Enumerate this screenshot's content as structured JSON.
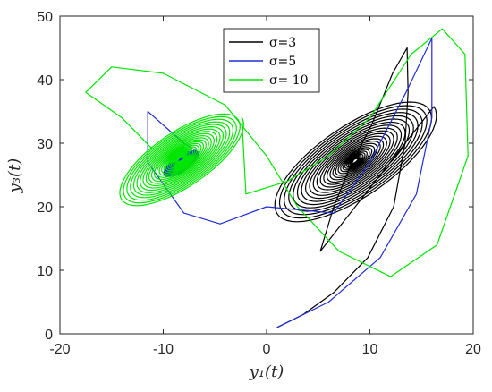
{
  "chart_data": {
    "type": "line",
    "title": "",
    "xlabel": "y₁(t)",
    "ylabel": "y₃(t)",
    "xlim": [
      -20,
      20
    ],
    "ylim": [
      0,
      50
    ],
    "xticks": [
      "-20",
      "-10",
      "0",
      "10",
      "20"
    ],
    "yticks": [
      "0",
      "10",
      "20",
      "30",
      "40",
      "50"
    ],
    "grid": false,
    "legend_position": "top-center",
    "series": [
      {
        "name": "σ=3",
        "color": "#000000",
        "start": [
          1,
          1
        ],
        "center": [
          8.5,
          27.2
        ],
        "pitch": 11.8,
        "extent": [
          -4,
          22
        ],
        "path": [
          [
            1,
            1
          ],
          [
            3.5,
            3
          ],
          [
            6.5,
            6.5
          ],
          [
            9.8,
            12
          ],
          [
            12.3,
            20
          ],
          [
            13.4,
            30
          ],
          [
            13.7,
            38
          ],
          [
            13.6,
            45
          ],
          [
            12.2,
            41
          ],
          [
            10.2,
            33
          ],
          [
            8,
            26
          ],
          [
            6.5,
            20
          ],
          [
            5.2,
            13
          ]
        ]
      },
      {
        "name": "σ=5",
        "color": "#1f2ed6",
        "start": [
          1,
          1
        ],
        "center": [
          -8.3,
          26.8
        ],
        "pitch": 10.8,
        "extent": [
          -5.5,
          7.5
        ],
        "path": [
          [
            1,
            1
          ],
          [
            6,
            5
          ],
          [
            11,
            12
          ],
          [
            14.5,
            22
          ],
          [
            16,
            34
          ],
          [
            16,
            46.5
          ],
          [
            13.5,
            38
          ],
          [
            10,
            27
          ],
          [
            6.5,
            19
          ],
          [
            0,
            20
          ],
          [
            -4.5,
            17.3
          ],
          [
            -8,
            19
          ],
          [
            -11.5,
            27
          ],
          [
            -11.5,
            35
          ],
          [
            -8,
            30
          ]
        ]
      },
      {
        "name": "σ= 10",
        "color": "#00e600",
        "start": [
          -11,
          29
        ],
        "center": [
          -8.3,
          27.5
        ],
        "pitch": 11.7,
        "extent": [
          -3.4,
          25.2
        ],
        "path": [
          [
            -11,
            29
          ],
          [
            -14,
            34
          ],
          [
            -17.5,
            38
          ],
          [
            -15,
            42
          ],
          [
            -10,
            41
          ],
          [
            -4,
            36
          ],
          [
            0,
            28
          ],
          [
            3,
            20
          ],
          [
            7,
            13
          ],
          [
            12,
            9
          ],
          [
            16.5,
            14
          ],
          [
            19.5,
            28
          ],
          [
            19.2,
            44
          ],
          [
            17,
            48
          ],
          [
            14,
            44
          ],
          [
            10,
            34
          ],
          [
            6,
            28
          ],
          [
            2,
            24
          ],
          [
            -2,
            22
          ]
        ]
      }
    ]
  }
}
